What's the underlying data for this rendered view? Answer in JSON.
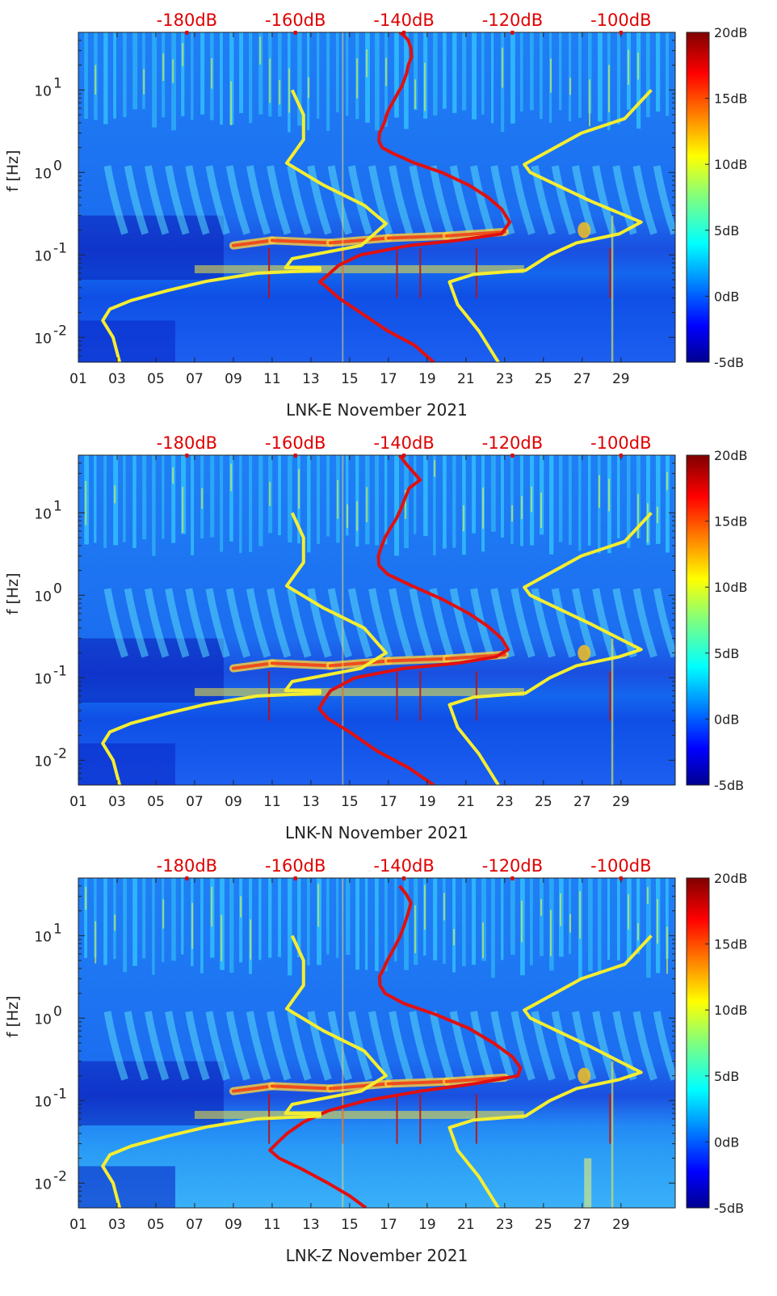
{
  "chart_data": [
    {
      "type": "heatmap",
      "xlabel": "LNK-E November 2021",
      "ylabel": "f [Hz]",
      "x_ticks": [
        "01",
        "03",
        "05",
        "07",
        "09",
        "11",
        "13",
        "15",
        "17",
        "19",
        "21",
        "23",
        "25",
        "27",
        "29"
      ],
      "y_ticks": [
        {
          "base": "10",
          "exp": "-2"
        },
        {
          "base": "10",
          "exp": "-1"
        },
        {
          "base": "10",
          "exp": "0"
        },
        {
          "base": "10",
          "exp": "1"
        }
      ],
      "top_axis_ticks": [
        "-180dB",
        "-160dB",
        "-140dB",
        "-120dB",
        "-100dB"
      ],
      "colorbar": {
        "labels": [
          "20dB",
          "15dB",
          "10dB",
          "5dB",
          "0dB",
          "-5dB"
        ],
        "range": [
          -5,
          20
        ],
        "colormap": "jet"
      },
      "xlim": [
        1,
        31.8
      ],
      "ylim_hz": [
        0.005,
        50
      ],
      "log_y": true,
      "series": [
        {
          "color": "#e01010",
          "units": "dB (top axis)",
          "points": [
            [
              -140.8,
              50
            ],
            [
              -139.9,
              45
            ],
            [
              -139.2,
              40
            ],
            [
              -138.7,
              32
            ],
            [
              -138.6,
              25
            ],
            [
              -139.2,
              20
            ],
            [
              -139.5,
              16
            ],
            [
              -140.0,
              13
            ],
            [
              -140.4,
              11
            ],
            [
              -141.0,
              9.5
            ],
            [
              -141.6,
              8
            ],
            [
              -142.2,
              6.8
            ],
            [
              -142.8,
              5.8
            ],
            [
              -143.2,
              5
            ],
            [
              -143.5,
              4.2
            ],
            [
              -144.0,
              3.5
            ],
            [
              -144.5,
              3.0
            ],
            [
              -144.6,
              2.4
            ],
            [
              -144.0,
              2.0
            ],
            [
              -142.0,
              1.7
            ],
            [
              -138.0,
              1.3
            ],
            [
              -133.0,
              1.0
            ],
            [
              -128.0,
              0.7
            ],
            [
              -124.5,
              0.5
            ],
            [
              -122.0,
              0.36
            ],
            [
              -120.5,
              0.25
            ],
            [
              -122.0,
              0.18
            ],
            [
              -130.0,
              0.15
            ],
            [
              -139.0,
              0.13
            ],
            [
              -148.0,
              0.1
            ],
            [
              -152.0,
              0.075
            ],
            [
              -154.0,
              0.057
            ],
            [
              -155.5,
              0.047
            ],
            [
              -154.5,
              0.042
            ],
            [
              -152.0,
              0.03
            ],
            [
              -148.0,
              0.02
            ],
            [
              -143.0,
              0.012
            ],
            [
              -138.0,
              0.008
            ],
            [
              -134.5,
              0.005
            ]
          ]
        },
        {
          "color": "#f5ee30",
          "units": "dB (top axis)",
          "points": [
            [
              -160.6,
              10
            ],
            [
              -158.5,
              5
            ],
            [
              -158.5,
              2.5
            ],
            [
              -161.6,
              1.3
            ],
            [
              -154.8,
              0.7
            ],
            [
              -147.3,
              0.4
            ],
            [
              -143.3,
              0.24
            ],
            [
              -147.9,
              0.13
            ],
            [
              -160.6,
              0.09
            ],
            [
              -161.8,
              0.07
            ],
            [
              -155.5,
              0.07
            ],
            [
              -155.5,
              0.065
            ],
            [
              -167.0,
              0.06
            ],
            [
              -176.3,
              0.048
            ],
            [
              -183.5,
              0.037
            ],
            [
              -190.3,
              0.028
            ],
            [
              -194.2,
              0.022
            ],
            [
              -195.5,
              0.016
            ],
            [
              -193.6,
              0.01
            ],
            [
              -192.4,
              0.005
            ]
          ]
        },
        {
          "color": "#f5ee30",
          "units": "dB (top axis)",
          "points": [
            [
              -122.6,
              0.005
            ],
            [
              -126.2,
              0.012
            ],
            [
              -130.1,
              0.025
            ],
            [
              -131.6,
              0.047
            ],
            [
              -127.2,
              0.058
            ],
            [
              -117.6,
              0.065
            ],
            [
              -113.1,
              0.1
            ],
            [
              -108.2,
              0.14
            ],
            [
              -100.3,
              0.18
            ],
            [
              -96.3,
              0.25
            ],
            [
              -105.6,
              0.45
            ],
            [
              -116.7,
              1.0
            ],
            [
              -117.8,
              1.25
            ],
            [
              -107.3,
              3.0
            ],
            [
              -99.3,
              4.5
            ],
            [
              -94.4,
              10
            ]
          ]
        }
      ]
    },
    {
      "type": "heatmap",
      "xlabel": "LNK-N November 2021",
      "ylabel": "f [Hz]",
      "x_ticks": [
        "01",
        "03",
        "05",
        "07",
        "09",
        "11",
        "13",
        "15",
        "17",
        "19",
        "21",
        "23",
        "25",
        "27",
        "29"
      ],
      "y_ticks": [
        {
          "base": "10",
          "exp": "-2"
        },
        {
          "base": "10",
          "exp": "-1"
        },
        {
          "base": "10",
          "exp": "0"
        },
        {
          "base": "10",
          "exp": "1"
        }
      ],
      "top_axis_ticks": [
        "-180dB",
        "-160dB",
        "-140dB",
        "-120dB",
        "-100dB"
      ],
      "colorbar": {
        "labels": [
          "20dB",
          "15dB",
          "10dB",
          "5dB",
          "0dB",
          "-5dB"
        ],
        "range": [
          -5,
          20
        ],
        "colormap": "jet"
      },
      "xlim": [
        1,
        31.8
      ],
      "ylim_hz": [
        0.005,
        50
      ],
      "log_y": true,
      "series": [
        {
          "color": "#e01010",
          "units": "dB (top axis)",
          "points": [
            [
              -140.8,
              50
            ],
            [
              -139.7,
              40
            ],
            [
              -137.0,
              25
            ],
            [
              -139.0,
              20
            ],
            [
              -139.8,
              15
            ],
            [
              -140.6,
              11
            ],
            [
              -141.4,
              8.5
            ],
            [
              -142.5,
              6.5
            ],
            [
              -143.5,
              5
            ],
            [
              -144.2,
              3.8
            ],
            [
              -144.7,
              3.0
            ],
            [
              -144.6,
              2.3
            ],
            [
              -143.0,
              1.8
            ],
            [
              -138.5,
              1.3
            ],
            [
              -133.0,
              0.9
            ],
            [
              -128.0,
              0.6
            ],
            [
              -124.5,
              0.42
            ],
            [
              -122.0,
              0.3
            ],
            [
              -120.8,
              0.22
            ],
            [
              -123.0,
              0.18
            ],
            [
              -130.0,
              0.15
            ],
            [
              -140.0,
              0.13
            ],
            [
              -149.0,
              0.1
            ],
            [
              -153.5,
              0.07
            ],
            [
              -155.0,
              0.05
            ],
            [
              -155.6,
              0.042
            ],
            [
              -154.0,
              0.032
            ],
            [
              -150.0,
              0.022
            ],
            [
              -145.0,
              0.013
            ],
            [
              -139.0,
              0.008
            ],
            [
              -134.5,
              0.005
            ]
          ]
        },
        {
          "color": "#f5ee30",
          "units": "dB (top axis)",
          "points": [
            [
              -160.6,
              10
            ],
            [
              -158.5,
              5
            ],
            [
              -158.5,
              2.5
            ],
            [
              -161.6,
              1.3
            ],
            [
              -154.8,
              0.7
            ],
            [
              -147.3,
              0.4
            ],
            [
              -143.3,
              0.2
            ],
            [
              -147.9,
              0.13
            ],
            [
              -160.6,
              0.09
            ],
            [
              -161.8,
              0.07
            ],
            [
              -155.5,
              0.07
            ],
            [
              -155.5,
              0.065
            ],
            [
              -167.0,
              0.06
            ],
            [
              -176.3,
              0.048
            ],
            [
              -183.5,
              0.037
            ],
            [
              -190.3,
              0.028
            ],
            [
              -194.2,
              0.022
            ],
            [
              -195.5,
              0.016
            ],
            [
              -193.6,
              0.01
            ],
            [
              -192.4,
              0.005
            ]
          ]
        },
        {
          "color": "#f5ee30",
          "units": "dB (top axis)",
          "points": [
            [
              -122.6,
              0.005
            ],
            [
              -126.2,
              0.012
            ],
            [
              -130.1,
              0.025
            ],
            [
              -131.6,
              0.047
            ],
            [
              -127.2,
              0.058
            ],
            [
              -117.6,
              0.065
            ],
            [
              -113.1,
              0.1
            ],
            [
              -108.2,
              0.14
            ],
            [
              -100.3,
              0.18
            ],
            [
              -96.3,
              0.22
            ],
            [
              -105.6,
              0.45
            ],
            [
              -116.7,
              1.0
            ],
            [
              -117.8,
              1.25
            ],
            [
              -107.3,
              3.0
            ],
            [
              -99.3,
              4.5
            ],
            [
              -94.4,
              10
            ]
          ]
        }
      ]
    },
    {
      "type": "heatmap",
      "xlabel": "LNK-Z November 2021",
      "ylabel": "f [Hz]",
      "x_ticks": [
        "01",
        "03",
        "05",
        "07",
        "09",
        "11",
        "13",
        "15",
        "17",
        "19",
        "21",
        "23",
        "25",
        "27",
        "29"
      ],
      "y_ticks": [
        {
          "base": "10",
          "exp": "-2"
        },
        {
          "base": "10",
          "exp": "-1"
        },
        {
          "base": "10",
          "exp": "0"
        },
        {
          "base": "10",
          "exp": "1"
        }
      ],
      "top_axis_ticks": [
        "-180dB",
        "-160dB",
        "-140dB",
        "-120dB",
        "-100dB"
      ],
      "colorbar": {
        "labels": [
          "20dB",
          "15dB",
          "10dB",
          "5dB",
          "0dB",
          "-5dB"
        ],
        "range": [
          -5,
          20
        ],
        "colormap": "jet"
      },
      "xlim": [
        1,
        31.8
      ],
      "ylim_hz": [
        0.005,
        50
      ],
      "log_y": true,
      "series": [
        {
          "color": "#e01010",
          "units": "dB (top axis)",
          "points": [
            [
              -140.8,
              40
            ],
            [
              -139.6,
              32
            ],
            [
              -138.7,
              25
            ],
            [
              -139.3,
              18
            ],
            [
              -140.0,
              13
            ],
            [
              -140.8,
              9.5
            ],
            [
              -141.6,
              7.5
            ],
            [
              -142.4,
              6
            ],
            [
              -143.2,
              4.8
            ],
            [
              -143.7,
              4.0
            ],
            [
              -144.5,
              3.2
            ],
            [
              -144.4,
              2.5
            ],
            [
              -143.5,
              2.0
            ],
            [
              -140.0,
              1.5
            ],
            [
              -134.0,
              1.1
            ],
            [
              -128.0,
              0.75
            ],
            [
              -123.5,
              0.5
            ],
            [
              -120.0,
              0.34
            ],
            [
              -118.5,
              0.25
            ],
            [
              -119.0,
              0.2
            ],
            [
              -127.0,
              0.16
            ],
            [
              -137.0,
              0.13
            ],
            [
              -147.0,
              0.1
            ],
            [
              -154.0,
              0.075
            ],
            [
              -158.5,
              0.055
            ],
            [
              -161.5,
              0.04
            ],
            [
              -163.5,
              0.03
            ],
            [
              -164.7,
              0.025
            ],
            [
              -163.0,
              0.02
            ],
            [
              -159.0,
              0.015
            ],
            [
              -154.0,
              0.01
            ],
            [
              -150.0,
              0.007
            ],
            [
              -147.0,
              0.005
            ]
          ]
        },
        {
          "color": "#f5ee30",
          "units": "dB (top axis)",
          "points": [
            [
              -160.6,
              10
            ],
            [
              -158.5,
              5
            ],
            [
              -158.5,
              2.5
            ],
            [
              -161.6,
              1.3
            ],
            [
              -154.8,
              0.7
            ],
            [
              -147.3,
              0.4
            ],
            [
              -143.3,
              0.2
            ],
            [
              -147.9,
              0.13
            ],
            [
              -160.6,
              0.09
            ],
            [
              -161.8,
              0.07
            ],
            [
              -155.5,
              0.07
            ],
            [
              -155.5,
              0.065
            ],
            [
              -167.0,
              0.06
            ],
            [
              -176.3,
              0.048
            ],
            [
              -183.5,
              0.037
            ],
            [
              -190.3,
              0.028
            ],
            [
              -194.2,
              0.022
            ],
            [
              -195.5,
              0.016
            ],
            [
              -193.6,
              0.01
            ],
            [
              -192.4,
              0.005
            ]
          ]
        },
        {
          "color": "#f5ee30",
          "units": "dB (top axis)",
          "points": [
            [
              -122.6,
              0.005
            ],
            [
              -126.2,
              0.012
            ],
            [
              -130.1,
              0.025
            ],
            [
              -131.6,
              0.047
            ],
            [
              -127.2,
              0.058
            ],
            [
              -117.6,
              0.065
            ],
            [
              -113.1,
              0.1
            ],
            [
              -108.2,
              0.14
            ],
            [
              -100.3,
              0.18
            ],
            [
              -96.3,
              0.22
            ],
            [
              -105.6,
              0.45
            ],
            [
              -116.7,
              1.0
            ],
            [
              -117.8,
              1.25
            ],
            [
              -107.3,
              3.0
            ],
            [
              -99.3,
              4.5
            ],
            [
              -94.4,
              10
            ]
          ]
        }
      ]
    }
  ]
}
